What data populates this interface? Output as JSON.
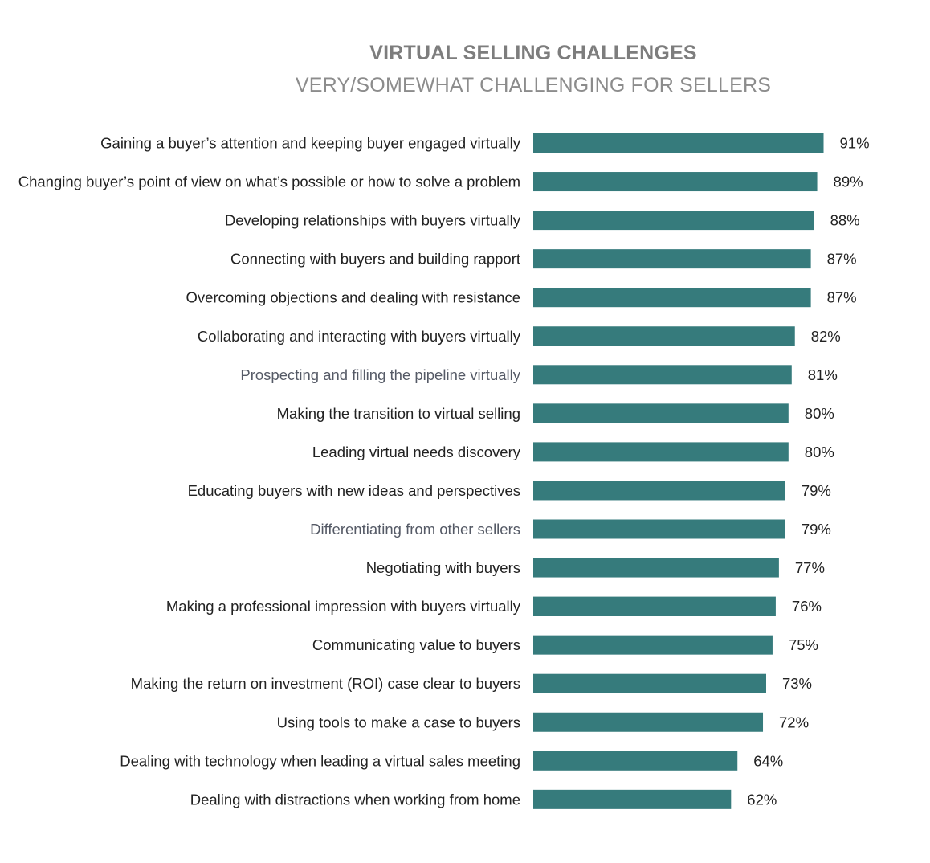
{
  "colors": {
    "bar": "#367b7c",
    "title": "#7d7d7d",
    "subtitle": "#8c8c8c",
    "text": "#222222",
    "muted_text": "#555a66"
  },
  "chart_data": {
    "type": "bar",
    "orientation": "horizontal",
    "title": "VIRTUAL SELLING CHALLENGES",
    "subtitle": "VERY/SOMEWHAT CHALLENGING FOR SELLERS",
    "xlabel": "",
    "ylabel": "",
    "xlim": [
      0,
      100
    ],
    "grid": false,
    "legend": "none",
    "value_suffix": "%",
    "categories": [
      "Gaining a buyer’s attention and keeping buyer engaged virtually",
      "Changing buyer’s point of view on what’s possible or how to solve a problem",
      "Developing relationships with buyers virtually",
      "Connecting with buyers and building rapport",
      "Overcoming objections and dealing with resistance",
      "Collaborating and interacting with buyers virtually",
      "Prospecting and filling the pipeline virtually",
      "Making the transition to virtual selling",
      "Leading virtual needs discovery",
      "Educating buyers with new ideas and perspectives",
      "Differentiating from other sellers",
      "Negotiating with buyers",
      "Making a professional impression with buyers virtually",
      "Communicating value to buyers",
      "Making the return on investment (ROI) case clear to buyers",
      "Using tools to make a case to buyers",
      "Dealing with technology when leading a virtual sales meeting",
      "Dealing with distractions when working from home"
    ],
    "values": [
      91,
      89,
      88,
      87,
      87,
      82,
      81,
      80,
      80,
      79,
      79,
      77,
      76,
      75,
      73,
      72,
      64,
      62
    ],
    "value_labels": [
      "91%",
      "89%",
      "88%",
      "87%",
      "87%",
      "82%",
      "81%",
      "80%",
      "80%",
      "79%",
      "79%",
      "77%",
      "76%",
      "75%",
      "73%",
      "72%",
      "64%",
      "62%"
    ],
    "muted_categories": [
      6,
      10
    ]
  }
}
